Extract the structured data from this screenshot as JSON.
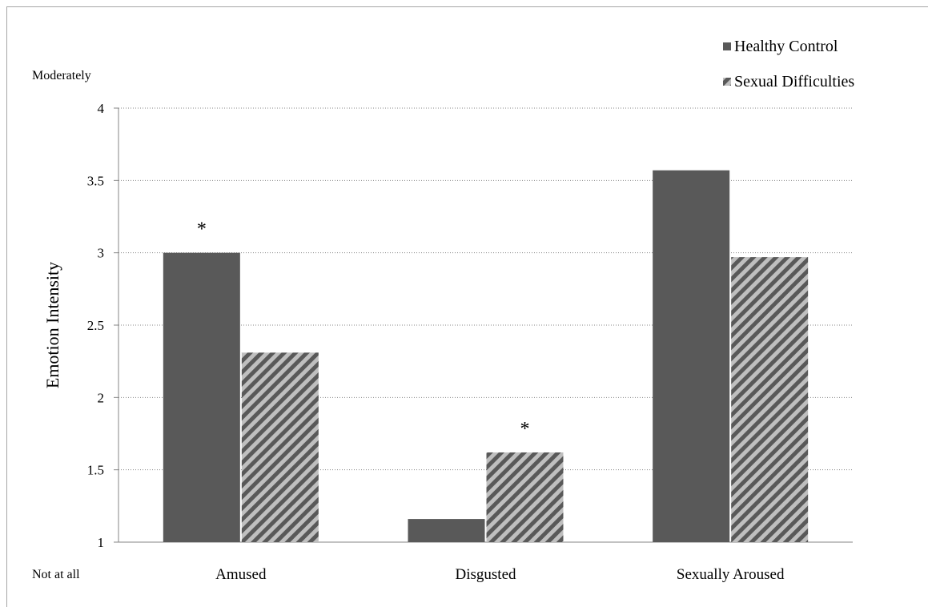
{
  "chart_data": {
    "type": "bar",
    "categories": [
      "Amused",
      "Disgusted",
      "Sexually Aroused"
    ],
    "series": [
      {
        "name": "Healthy Control",
        "values": [
          3.0,
          1.16,
          3.57
        ],
        "color": "#595959",
        "pattern": "solid"
      },
      {
        "name": "Sexual Difficulties",
        "values": [
          2.31,
          1.62,
          2.97
        ],
        "color": "#595959",
        "pattern": "diagonal-stripes"
      }
    ],
    "ylabel": "Emotion Intensity",
    "ylim": [
      1,
      4
    ],
    "yticks": [
      1,
      1.5,
      2,
      2.5,
      3,
      3.5,
      4
    ],
    "ytick_labels": [
      "1",
      "1.5",
      "2",
      "2.5",
      "3",
      "3.5",
      "4"
    ],
    "y_anchor_top": "Moderately",
    "y_anchor_bottom": "Not at all",
    "significance": [
      {
        "category": "Amused",
        "label": "*"
      },
      {
        "category": "Disgusted",
        "label": "*"
      }
    ],
    "grid": "horizontal-dotted",
    "legend_position": "top-right"
  }
}
